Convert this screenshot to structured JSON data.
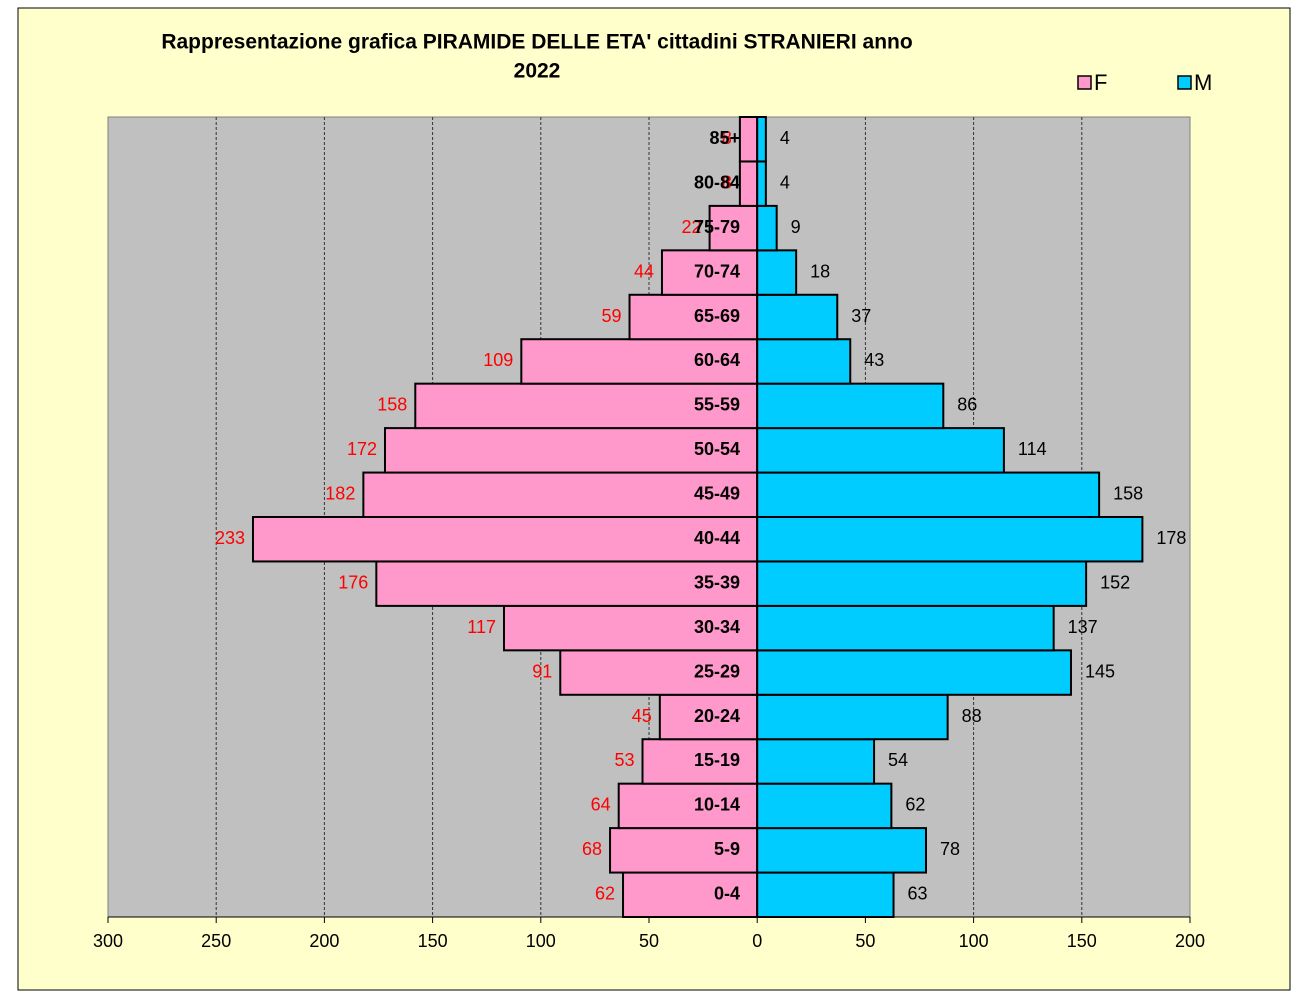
{
  "chart_data": {
    "type": "pyramid",
    "title": [
      "Rappresentazione grafica PIRAMIDE DELLE ETA' cittadini STRANIERI anno",
      "2022"
    ],
    "categories": [
      "0-4",
      "5-9",
      "10-14",
      "15-19",
      "20-24",
      "25-29",
      "30-34",
      "35-39",
      "40-44",
      "45-49",
      "50-54",
      "55-59",
      "60-64",
      "65-69",
      "70-74",
      "75-79",
      "80-84",
      "85+"
    ],
    "series": [
      {
        "name": "F",
        "color": "#FF99CC",
        "label_color": "#FF0000",
        "values": [
          62,
          68,
          64,
          53,
          45,
          91,
          117,
          176,
          233,
          182,
          172,
          158,
          109,
          59,
          44,
          22,
          8,
          8
        ]
      },
      {
        "name": "M",
        "color": "#00CCFF",
        "label_color": "#000000",
        "values": [
          63,
          78,
          62,
          54,
          88,
          145,
          137,
          152,
          178,
          158,
          114,
          86,
          43,
          37,
          18,
          9,
          4,
          4
        ]
      }
    ],
    "xlim": [
      -300,
      200
    ],
    "xticks": [
      {
        "value": -300,
        "label": "300"
      },
      {
        "value": -250,
        "label": "250"
      },
      {
        "value": -200,
        "label": "200"
      },
      {
        "value": -150,
        "label": "150"
      },
      {
        "value": -100,
        "label": "100"
      },
      {
        "value": -50,
        "label": "50"
      },
      0,
      50,
      100,
      150,
      200
    ],
    "grid": true
  }
}
